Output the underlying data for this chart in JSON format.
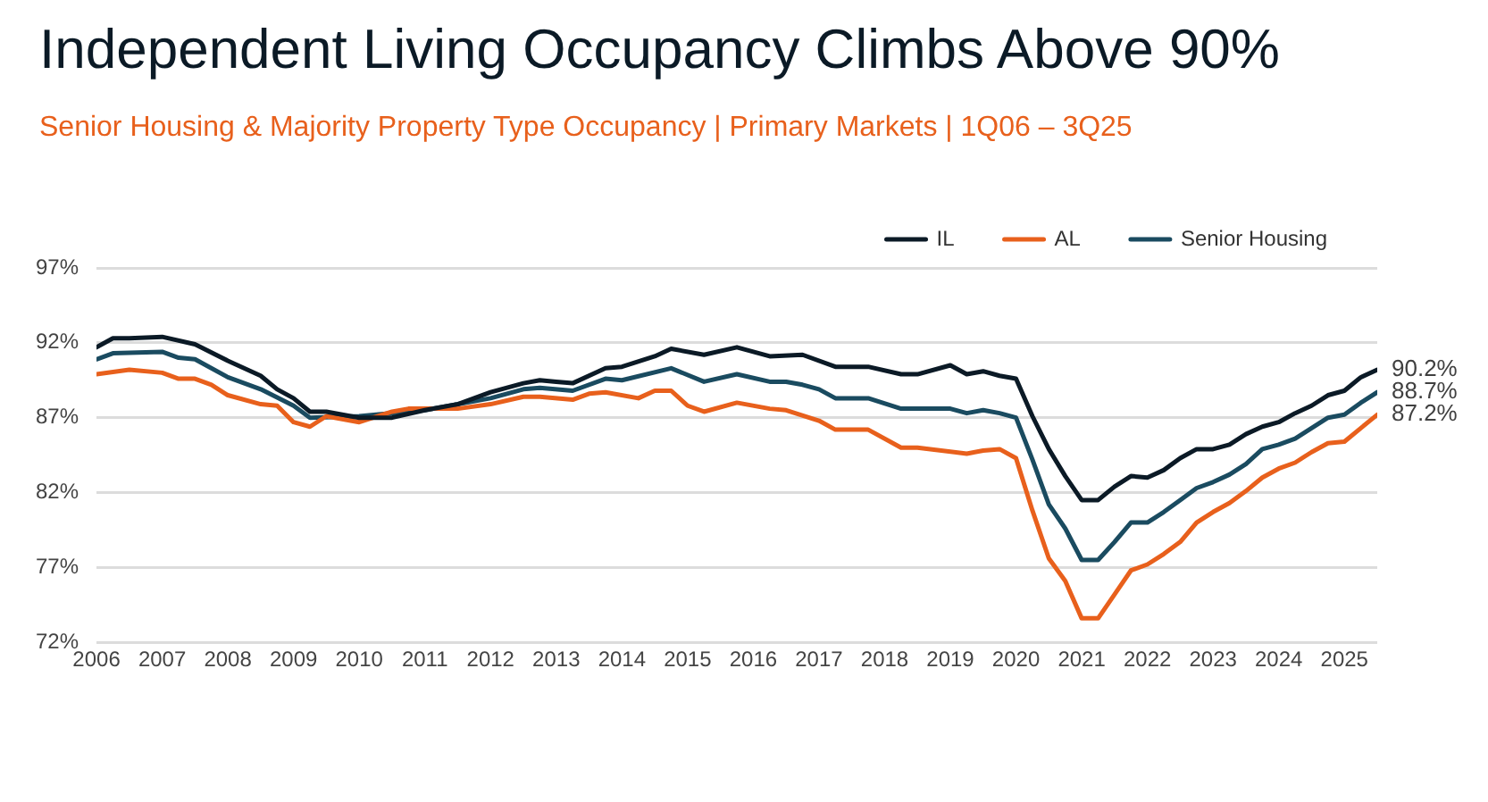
{
  "chart_data": {
    "type": "line",
    "title": "Independent Living Occupancy Climbs Above 90%",
    "subtitle": "Senior Housing & Majority Property Type Occupancy | Primary Markets | 1Q06 – 3Q25",
    "xlim": [
      2006,
      2025.5
    ],
    "xticks": [
      2006,
      2007,
      2008,
      2009,
      2010,
      2011,
      2012,
      2013,
      2014,
      2015,
      2016,
      2017,
      2018,
      2019,
      2020,
      2021,
      2022,
      2023,
      2024,
      2025
    ],
    "ylim": [
      72,
      97
    ],
    "yticks": [
      {
        "value": 72,
        "label": "72%"
      },
      {
        "value": 77,
        "label": "77%"
      },
      {
        "value": 82,
        "label": "82%"
      },
      {
        "value": 87,
        "label": "87%"
      },
      {
        "value": 92,
        "label": "92%"
      },
      {
        "value": 97,
        "label": "97%"
      }
    ],
    "grid": "y",
    "legend": "top right",
    "marker": "none",
    "line_style": "solid",
    "series": [
      {
        "name": "IL",
        "color": "#0b1a26",
        "x": [
          2006,
          2006.25,
          2006.5,
          2007,
          2007.5,
          2008,
          2008.5,
          2008.75,
          2009,
          2009.25,
          2009.5,
          2010,
          2010.5,
          2011,
          2011.5,
          2012,
          2012.5,
          2012.75,
          2013,
          2013.25,
          2013.75,
          2014,
          2014.5,
          2014.75,
          2015.25,
          2015.75,
          2016.25,
          2016.75,
          2017.25,
          2017.75,
          2018.25,
          2018.5,
          2019,
          2019.25,
          2019.5,
          2019.75,
          2020,
          2020.25,
          2020.5,
          2020.75,
          2021,
          2021.25,
          2021.5,
          2021.75,
          2022,
          2022.25,
          2022.5,
          2022.75,
          2023,
          2023.25,
          2023.5,
          2023.75,
          2024,
          2024.25,
          2024.5,
          2024.75,
          2025,
          2025.25,
          2025.5
        ],
        "values": [
          91.7,
          92.3,
          92.3,
          92.4,
          91.9,
          90.8,
          89.8,
          88.9,
          88.3,
          87.4,
          87.4,
          87.0,
          87.0,
          87.5,
          87.9,
          88.7,
          89.3,
          89.5,
          89.4,
          89.3,
          90.3,
          90.4,
          91.1,
          91.6,
          91.2,
          91.7,
          91.1,
          91.2,
          90.4,
          90.4,
          89.9,
          89.9,
          90.5,
          89.9,
          90.1,
          89.8,
          89.6,
          87.1,
          84.9,
          83.1,
          81.5,
          81.5,
          82.4,
          83.1,
          83.0,
          83.5,
          84.3,
          84.9,
          84.9,
          85.2,
          85.9,
          86.4,
          86.7,
          87.3,
          87.8,
          88.5,
          88.8,
          89.7,
          90.2
        ],
        "value_labels": [
          null,
          null,
          null,
          null,
          null,
          null,
          null,
          null,
          null,
          null,
          null,
          null,
          null,
          null,
          null,
          null,
          null,
          null,
          null,
          null,
          null,
          null,
          null,
          null,
          null,
          null,
          null,
          null,
          null,
          null,
          null,
          null,
          null,
          null,
          null,
          null,
          null,
          null,
          null,
          null,
          null,
          null,
          null,
          null,
          null,
          null,
          null,
          null,
          null,
          null,
          null,
          null,
          null,
          null,
          null,
          null,
          null,
          null,
          "90.2%"
        ]
      },
      {
        "name": "AL",
        "color": "#e8601c",
        "x": [
          2006,
          2006.5,
          2007,
          2007.25,
          2007.5,
          2007.75,
          2008,
          2008.5,
          2008.75,
          2009,
          2009.25,
          2009.5,
          2010,
          2010.5,
          2010.75,
          2011.5,
          2012,
          2012.5,
          2012.75,
          2013.25,
          2013.5,
          2013.75,
          2014.25,
          2014.5,
          2014.75,
          2015,
          2015.25,
          2015.75,
          2016.25,
          2016.5,
          2017,
          2017.25,
          2017.5,
          2017.75,
          2018.25,
          2018.5,
          2019.25,
          2019.5,
          2019.75,
          2020,
          2020.25,
          2020.5,
          2020.75,
          2021,
          2021.25,
          2021.5,
          2021.75,
          2022,
          2022.25,
          2022.5,
          2022.75,
          2023,
          2023.25,
          2023.5,
          2023.75,
          2024,
          2024.25,
          2024.5,
          2024.75,
          2025,
          2025.25,
          2025.5
        ],
        "values": [
          89.9,
          90.2,
          90.0,
          89.6,
          89.6,
          89.2,
          88.5,
          87.9,
          87.8,
          86.7,
          86.4,
          87.1,
          86.7,
          87.4,
          87.6,
          87.6,
          87.9,
          88.4,
          88.4,
          88.2,
          88.6,
          88.7,
          88.3,
          88.8,
          88.8,
          87.8,
          87.4,
          88.0,
          87.6,
          87.5,
          86.8,
          86.2,
          86.2,
          86.2,
          85.0,
          85.0,
          84.6,
          84.8,
          84.9,
          84.3,
          80.8,
          77.6,
          76.1,
          73.6,
          73.6,
          75.2,
          76.8,
          77.2,
          77.9,
          78.7,
          80.0,
          80.7,
          81.3,
          82.1,
          83.0,
          83.6,
          84.0,
          84.7,
          85.3,
          85.4,
          86.3,
          87.2
        ],
        "value_labels": [
          null,
          null,
          null,
          null,
          null,
          null,
          null,
          null,
          null,
          null,
          null,
          null,
          null,
          null,
          null,
          null,
          null,
          null,
          null,
          null,
          null,
          null,
          null,
          null,
          null,
          null,
          null,
          null,
          null,
          null,
          null,
          null,
          null,
          null,
          null,
          null,
          null,
          null,
          null,
          null,
          null,
          null,
          null,
          null,
          null,
          null,
          null,
          null,
          null,
          null,
          null,
          null,
          null,
          null,
          null,
          null,
          null,
          null,
          null,
          null,
          null,
          "87.2%"
        ]
      },
      {
        "name": "Senior Housing",
        "color": "#1a4b60",
        "x": [
          2006,
          2006.25,
          2007,
          2007.25,
          2007.5,
          2008,
          2008.5,
          2009,
          2009.25,
          2010,
          2011,
          2012,
          2012.5,
          2012.75,
          2013.25,
          2013.75,
          2014,
          2014.75,
          2015.25,
          2015.75,
          2016.25,
          2016.5,
          2016.75,
          2017,
          2017.25,
          2017.75,
          2018.25,
          2018.5,
          2019,
          2019.25,
          2019.5,
          2019.75,
          2020,
          2020.25,
          2020.5,
          2020.75,
          2021,
          2021.25,
          2021.5,
          2021.75,
          2022,
          2022.25,
          2022.5,
          2022.75,
          2023,
          2023.25,
          2023.5,
          2023.75,
          2024,
          2024.25,
          2024.5,
          2024.75,
          2025,
          2025.25,
          2025.5
        ],
        "values": [
          90.9,
          91.3,
          91.4,
          91.0,
          90.9,
          89.7,
          88.9,
          87.8,
          87.0,
          87.1,
          87.5,
          88.3,
          88.9,
          89.0,
          88.8,
          89.6,
          89.5,
          90.3,
          89.4,
          89.9,
          89.4,
          89.4,
          89.2,
          88.9,
          88.3,
          88.3,
          87.6,
          87.6,
          87.6,
          87.3,
          87.5,
          87.3,
          87.0,
          84.2,
          81.2,
          79.6,
          77.5,
          77.5,
          78.7,
          80.0,
          80.0,
          80.7,
          81.5,
          82.3,
          82.7,
          83.2,
          83.9,
          84.9,
          85.2,
          85.6,
          86.3,
          87.0,
          87.2,
          88.0,
          88.7
        ],
        "value_labels": [
          null,
          null,
          null,
          null,
          null,
          null,
          null,
          null,
          null,
          null,
          null,
          null,
          null,
          null,
          null,
          null,
          null,
          null,
          null,
          null,
          null,
          null,
          null,
          null,
          null,
          null,
          null,
          null,
          null,
          null,
          null,
          null,
          null,
          null,
          null,
          null,
          null,
          null,
          null,
          null,
          null,
          null,
          null,
          null,
          null,
          null,
          null,
          null,
          null,
          null,
          null,
          null,
          null,
          null,
          "88.7%"
        ]
      }
    ]
  }
}
